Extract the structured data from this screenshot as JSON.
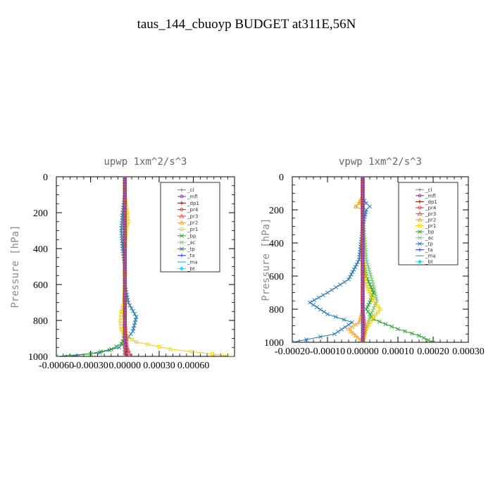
{
  "figure": {
    "title": "taus_144_cbuoyp  BUDGET at311E,56N"
  },
  "chart_data": [
    {
      "type": "line",
      "title": "upwp   1xm^2/s^3",
      "ylabel": "Pressure [hPa]",
      "xlim": [
        -0.0006,
        0.00096
      ],
      "ylim": [
        0,
        1000
      ],
      "y_inverted": true,
      "xtick_labels": [
        "-0.00060",
        "-0.00030",
        "0.00000",
        "0.00030",
        "0.00060"
      ],
      "xtick_values": [
        -0.0006,
        -0.0003,
        0,
        0.0003,
        0.0006
      ],
      "ytick_labels": [
        "0",
        "200",
        "400",
        "600",
        "800",
        "1000"
      ],
      "ytick_values": [
        0,
        200,
        400,
        600,
        800,
        1000
      ],
      "legend": {
        "placement": "top-right"
      },
      "series": [
        {
          "name": "_cl",
          "color": "#9467bd",
          "marker": "+",
          "x": [
            0,
            0,
            0,
            0,
            0,
            0,
            0,
            0,
            0,
            0,
            0,
            0
          ],
          "y": [
            0,
            100,
            200,
            300,
            400,
            500,
            600,
            700,
            800,
            900,
            950,
            1000
          ]
        },
        {
          "name": "_mfl",
          "color": "#8b1a8b",
          "marker": "circle",
          "x": [
            0,
            0,
            0,
            0,
            0,
            0,
            0,
            0,
            0,
            0,
            1e-05,
            2e-05
          ],
          "y": [
            0,
            100,
            200,
            300,
            400,
            500,
            600,
            700,
            800,
            900,
            950,
            1000
          ]
        },
        {
          "name": "_dp1",
          "color": "#8b0000",
          "marker": "+",
          "x": [
            0,
            0,
            0,
            0,
            0,
            0,
            0,
            0,
            0,
            0,
            0,
            1e-05
          ],
          "y": [
            0,
            100,
            200,
            300,
            400,
            500,
            600,
            700,
            800,
            900,
            950,
            1000
          ]
        },
        {
          "name": "_pr4",
          "color": "#d62728",
          "marker": "circle",
          "x": [
            0,
            0,
            0,
            0,
            0,
            0,
            0,
            0,
            0,
            0,
            0,
            1e-05
          ],
          "y": [
            0,
            100,
            200,
            300,
            400,
            500,
            600,
            700,
            800,
            900,
            950,
            1000
          ]
        },
        {
          "name": "_pr3",
          "color": "#ff3b3b",
          "marker": "triangle",
          "x": [
            0,
            0,
            0,
            0,
            0,
            0,
            0,
            0,
            0,
            1e-05,
            2e-05,
            5e-05
          ],
          "y": [
            0,
            100,
            200,
            300,
            400,
            500,
            600,
            700,
            800,
            900,
            950,
            1000
          ]
        },
        {
          "name": "_pr2",
          "color": "#ff9f1c",
          "marker": "triangle",
          "x": [
            0,
            0,
            0,
            0,
            0,
            0,
            0,
            0,
            0,
            0,
            0,
            0
          ],
          "y": [
            0,
            100,
            200,
            300,
            400,
            500,
            600,
            700,
            800,
            900,
            950,
            1000
          ]
        },
        {
          "name": "_pr1",
          "color": "#f0d000",
          "marker": "square",
          "x": [
            0,
            0,
            2e-05,
            3e-05,
            1e-05,
            0,
            0,
            -1e-05,
            -3e-05,
            -4e-05,
            -3e-05,
            -1e-05,
            0.0001,
            0.0004,
            0.00095
          ],
          "y": [
            0,
            100,
            200,
            250,
            300,
            400,
            600,
            700,
            750,
            800,
            850,
            880,
            920,
            960,
            1000
          ]
        },
        {
          "name": "_bp",
          "color": "#2ca02c",
          "marker": "x",
          "x": [
            0,
            0,
            0,
            0,
            0,
            0,
            0,
            0,
            0,
            -1e-05,
            -3e-05,
            -0.00012,
            -0.0003,
            -0.0006
          ],
          "y": [
            0,
            100,
            200,
            300,
            400,
            600,
            700,
            800,
            850,
            900,
            930,
            960,
            985,
            1000
          ]
        },
        {
          "name": "_ac",
          "color": "#7fc97f",
          "marker": "x",
          "x": [
            0,
            0,
            0,
            0,
            0,
            0,
            0,
            0,
            0,
            0
          ],
          "y": [
            0,
            100,
            200,
            300,
            400,
            600,
            800,
            900,
            950,
            1000
          ]
        },
        {
          "name": "_tp",
          "color": "#1f77b4",
          "marker": "x",
          "x": [
            0,
            0,
            -2e-05,
            -3e-05,
            -2e-05,
            0,
            0,
            3e-05,
            0.0001,
            7e-05,
            0,
            -5e-05,
            -0.00022,
            -0.0005
          ],
          "y": [
            0,
            100,
            200,
            300,
            400,
            500,
            600,
            700,
            780,
            860,
            920,
            950,
            980,
            1000
          ]
        },
        {
          "name": "_ta",
          "color": "#1e3aff",
          "marker": "+",
          "x": [
            0,
            0,
            0,
            0,
            0,
            0,
            0,
            0,
            0,
            0,
            0
          ],
          "y": [
            0,
            100,
            200,
            300,
            400,
            500,
            600,
            700,
            800,
            900,
            1000
          ]
        },
        {
          "name": "_ma",
          "color": "#1fa5d6",
          "marker": "dash",
          "x": [
            0,
            0,
            0,
            0,
            0,
            0,
            0,
            0,
            0,
            0,
            0
          ],
          "y": [
            0,
            100,
            200,
            300,
            400,
            500,
            600,
            700,
            800,
            900,
            1000
          ]
        },
        {
          "name": "_bt",
          "color": "#00e5ff",
          "marker": "diamond",
          "x": [
            0,
            0,
            0,
            0,
            0,
            0,
            0,
            0,
            0,
            0,
            0
          ],
          "y": [
            0,
            100,
            200,
            300,
            400,
            500,
            600,
            700,
            800,
            900,
            1000
          ]
        }
      ]
    },
    {
      "type": "line",
      "title": "vpwp   1xm^2/s^3",
      "ylabel": "Pressure [hPa]",
      "xlim": [
        -0.0002,
        0.0003
      ],
      "ylim": [
        0,
        1000
      ],
      "y_inverted": true,
      "xtick_labels": [
        "-0.00020",
        "-0.00010",
        "0.00000",
        "0.00010",
        "0.00020",
        "0.00030"
      ],
      "xtick_values": [
        -0.0002,
        -0.0001,
        0,
        0.0001,
        0.0002,
        0.0003
      ],
      "ytick_labels": [
        "0",
        "200",
        "400",
        "600",
        "800",
        "1000"
      ],
      "ytick_values": [
        0,
        200,
        400,
        600,
        800,
        1000
      ],
      "legend": {
        "placement": "top-right"
      },
      "series": [
        {
          "name": "_cl",
          "color": "#9467bd",
          "marker": "+",
          "x": [
            0,
            0,
            0,
            0,
            0,
            0,
            0,
            0,
            0,
            0,
            0
          ],
          "y": [
            0,
            100,
            200,
            300,
            400,
            500,
            600,
            700,
            800,
            900,
            1000
          ]
        },
        {
          "name": "_mfl",
          "color": "#8b1a8b",
          "marker": "circle",
          "x": [
            0,
            0,
            0,
            0,
            0,
            0,
            0,
            0,
            0,
            0,
            0
          ],
          "y": [
            0,
            100,
            200,
            300,
            400,
            500,
            600,
            700,
            800,
            900,
            1000
          ]
        },
        {
          "name": "_dp1",
          "color": "#8b0000",
          "marker": "+",
          "x": [
            0,
            0,
            0,
            0,
            0,
            0,
            0,
            0,
            0,
            0,
            0
          ],
          "y": [
            0,
            100,
            200,
            300,
            400,
            500,
            600,
            700,
            800,
            900,
            1000
          ]
        },
        {
          "name": "_pr4",
          "color": "#d62728",
          "marker": "circle",
          "x": [
            0,
            0,
            0,
            0,
            0,
            0,
            0,
            0,
            0,
            0,
            0
          ],
          "y": [
            0,
            100,
            200,
            300,
            400,
            500,
            600,
            700,
            800,
            900,
            1000
          ]
        },
        {
          "name": "_pr3",
          "color": "#ff3b3b",
          "marker": "triangle",
          "x": [
            0,
            0,
            0,
            0,
            0,
            0,
            0,
            0,
            0,
            5e-06,
            0
          ],
          "y": [
            0,
            100,
            200,
            300,
            400,
            500,
            600,
            700,
            800,
            900,
            1000
          ]
        },
        {
          "name": "_pr2",
          "color": "#ff9f1c",
          "marker": "triangle",
          "x": [
            0,
            0,
            -1e-05,
            -2e-05,
            0,
            0,
            0,
            0,
            -1e-05,
            -4e-05,
            -2e-05,
            0
          ],
          "y": [
            0,
            120,
            160,
            180,
            200,
            300,
            600,
            800,
            880,
            920,
            960,
            1000
          ]
        },
        {
          "name": "_pr1",
          "color": "#f0d000",
          "marker": "square",
          "x": [
            0,
            0,
            -1e-05,
            -2e-05,
            0,
            0,
            1e-05,
            3e-05,
            5e-05,
            3e-05,
            1e-05,
            0
          ],
          "y": [
            0,
            120,
            160,
            180,
            200,
            500,
            650,
            750,
            800,
            850,
            920,
            1000
          ]
        },
        {
          "name": "_bp",
          "color": "#2ca02c",
          "marker": "x",
          "x": [
            0,
            0,
            0,
            0,
            1e-05,
            2e-05,
            3e-05,
            2e-05,
            1e-05,
            3e-05,
            0.0001,
            0.00016,
            0.0002
          ],
          "y": [
            0,
            100,
            200,
            500,
            600,
            650,
            700,
            760,
            800,
            860,
            920,
            960,
            1000
          ]
        },
        {
          "name": "_ac",
          "color": "#7fc97f",
          "marker": "x",
          "x": [
            0,
            0,
            0,
            1e-05,
            3e-05,
            4e-05,
            2e-05,
            1e-05,
            0
          ],
          "y": [
            0,
            100,
            200,
            500,
            650,
            750,
            850,
            920,
            1000
          ]
        },
        {
          "name": "_tp",
          "color": "#1f77b4",
          "marker": "x",
          "x": [
            0,
            0,
            1e-05,
            2e-05,
            1e-05,
            0,
            -1e-05,
            -4e-05,
            -0.0001,
            -0.00015,
            -0.0001,
            -3e-05,
            -8e-05,
            -0.0002
          ],
          "y": [
            0,
            130,
            160,
            180,
            200,
            300,
            500,
            620,
            700,
            760,
            830,
            880,
            950,
            1000
          ]
        },
        {
          "name": "_ta",
          "color": "#1e3aff",
          "marker": "+",
          "x": [
            0,
            0,
            0,
            0,
            0,
            0,
            0,
            0,
            0,
            0,
            0
          ],
          "y": [
            0,
            100,
            200,
            300,
            400,
            500,
            600,
            700,
            800,
            900,
            1000
          ]
        },
        {
          "name": "_ma",
          "color": "#1fa5d6",
          "marker": "dash",
          "x": [
            0,
            0,
            0,
            0,
            0,
            0,
            0,
            0,
            0,
            0,
            0
          ],
          "y": [
            0,
            100,
            200,
            300,
            400,
            500,
            600,
            700,
            800,
            900,
            1000
          ]
        },
        {
          "name": "_bt",
          "color": "#00e5ff",
          "marker": "diamond",
          "x": [
            0,
            0,
            0,
            0,
            0,
            0,
            0,
            0,
            0,
            0,
            0
          ],
          "y": [
            0,
            100,
            200,
            300,
            400,
            500,
            600,
            700,
            800,
            900,
            1000
          ]
        }
      ]
    }
  ]
}
